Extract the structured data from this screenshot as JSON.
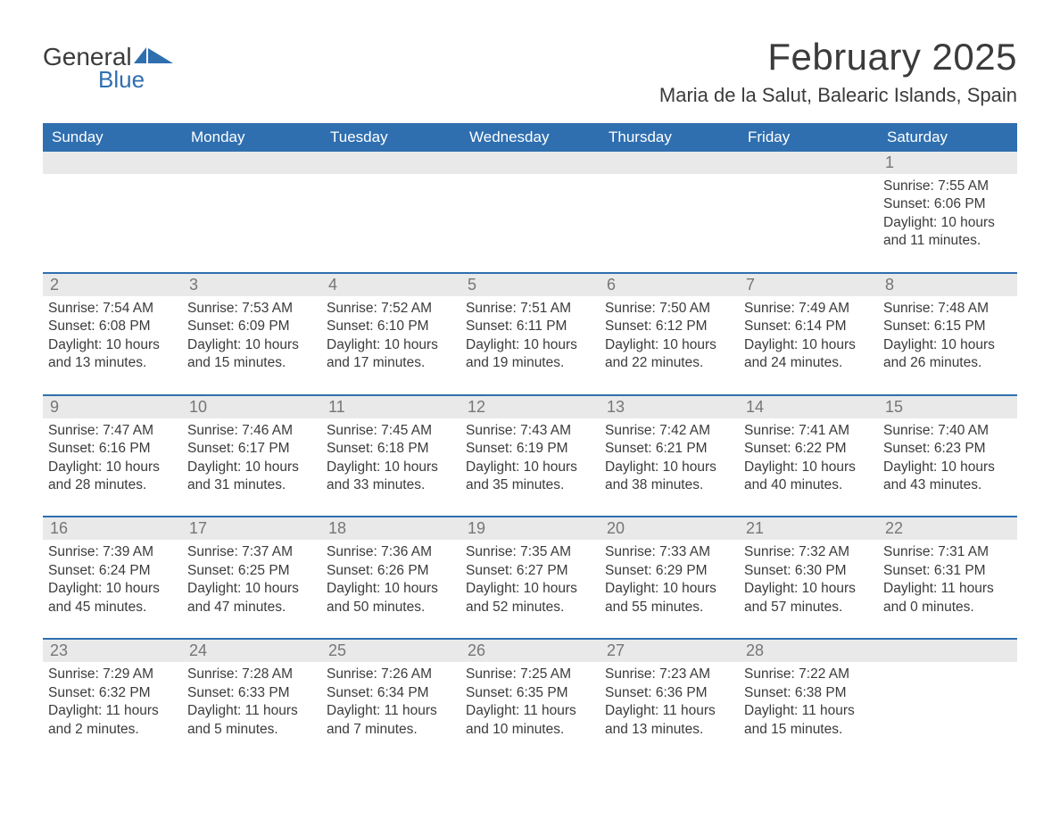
{
  "logo": {
    "text_general": "General",
    "text_blue": "Blue",
    "icon_color": "#2f6fb0"
  },
  "title": "February 2025",
  "location": "Maria de la Salut, Balearic Islands, Spain",
  "colors": {
    "header_bg": "#2f6fb0",
    "header_text": "#ffffff",
    "daynum_bg": "#e9e9e9",
    "daynum_text": "#767676",
    "body_text": "#3b3b3b",
    "rule": "#2f6fb0",
    "page_bg": "#ffffff"
  },
  "weekdays": [
    "Sunday",
    "Monday",
    "Tuesday",
    "Wednesday",
    "Thursday",
    "Friday",
    "Saturday"
  ],
  "weeks": [
    [
      null,
      null,
      null,
      null,
      null,
      null,
      {
        "n": "1",
        "sunrise": "Sunrise: 7:55 AM",
        "sunset": "Sunset: 6:06 PM",
        "daylight": "Daylight: 10 hours and 11 minutes."
      }
    ],
    [
      {
        "n": "2",
        "sunrise": "Sunrise: 7:54 AM",
        "sunset": "Sunset: 6:08 PM",
        "daylight": "Daylight: 10 hours and 13 minutes."
      },
      {
        "n": "3",
        "sunrise": "Sunrise: 7:53 AM",
        "sunset": "Sunset: 6:09 PM",
        "daylight": "Daylight: 10 hours and 15 minutes."
      },
      {
        "n": "4",
        "sunrise": "Sunrise: 7:52 AM",
        "sunset": "Sunset: 6:10 PM",
        "daylight": "Daylight: 10 hours and 17 minutes."
      },
      {
        "n": "5",
        "sunrise": "Sunrise: 7:51 AM",
        "sunset": "Sunset: 6:11 PM",
        "daylight": "Daylight: 10 hours and 19 minutes."
      },
      {
        "n": "6",
        "sunrise": "Sunrise: 7:50 AM",
        "sunset": "Sunset: 6:12 PM",
        "daylight": "Daylight: 10 hours and 22 minutes."
      },
      {
        "n": "7",
        "sunrise": "Sunrise: 7:49 AM",
        "sunset": "Sunset: 6:14 PM",
        "daylight": "Daylight: 10 hours and 24 minutes."
      },
      {
        "n": "8",
        "sunrise": "Sunrise: 7:48 AM",
        "sunset": "Sunset: 6:15 PM",
        "daylight": "Daylight: 10 hours and 26 minutes."
      }
    ],
    [
      {
        "n": "9",
        "sunrise": "Sunrise: 7:47 AM",
        "sunset": "Sunset: 6:16 PM",
        "daylight": "Daylight: 10 hours and 28 minutes."
      },
      {
        "n": "10",
        "sunrise": "Sunrise: 7:46 AM",
        "sunset": "Sunset: 6:17 PM",
        "daylight": "Daylight: 10 hours and 31 minutes."
      },
      {
        "n": "11",
        "sunrise": "Sunrise: 7:45 AM",
        "sunset": "Sunset: 6:18 PM",
        "daylight": "Daylight: 10 hours and 33 minutes."
      },
      {
        "n": "12",
        "sunrise": "Sunrise: 7:43 AM",
        "sunset": "Sunset: 6:19 PM",
        "daylight": "Daylight: 10 hours and 35 minutes."
      },
      {
        "n": "13",
        "sunrise": "Sunrise: 7:42 AM",
        "sunset": "Sunset: 6:21 PM",
        "daylight": "Daylight: 10 hours and 38 minutes."
      },
      {
        "n": "14",
        "sunrise": "Sunrise: 7:41 AM",
        "sunset": "Sunset: 6:22 PM",
        "daylight": "Daylight: 10 hours and 40 minutes."
      },
      {
        "n": "15",
        "sunrise": "Sunrise: 7:40 AM",
        "sunset": "Sunset: 6:23 PM",
        "daylight": "Daylight: 10 hours and 43 minutes."
      }
    ],
    [
      {
        "n": "16",
        "sunrise": "Sunrise: 7:39 AM",
        "sunset": "Sunset: 6:24 PM",
        "daylight": "Daylight: 10 hours and 45 minutes."
      },
      {
        "n": "17",
        "sunrise": "Sunrise: 7:37 AM",
        "sunset": "Sunset: 6:25 PM",
        "daylight": "Daylight: 10 hours and 47 minutes."
      },
      {
        "n": "18",
        "sunrise": "Sunrise: 7:36 AM",
        "sunset": "Sunset: 6:26 PM",
        "daylight": "Daylight: 10 hours and 50 minutes."
      },
      {
        "n": "19",
        "sunrise": "Sunrise: 7:35 AM",
        "sunset": "Sunset: 6:27 PM",
        "daylight": "Daylight: 10 hours and 52 minutes."
      },
      {
        "n": "20",
        "sunrise": "Sunrise: 7:33 AM",
        "sunset": "Sunset: 6:29 PM",
        "daylight": "Daylight: 10 hours and 55 minutes."
      },
      {
        "n": "21",
        "sunrise": "Sunrise: 7:32 AM",
        "sunset": "Sunset: 6:30 PM",
        "daylight": "Daylight: 10 hours and 57 minutes."
      },
      {
        "n": "22",
        "sunrise": "Sunrise: 7:31 AM",
        "sunset": "Sunset: 6:31 PM",
        "daylight": "Daylight: 11 hours and 0 minutes."
      }
    ],
    [
      {
        "n": "23",
        "sunrise": "Sunrise: 7:29 AM",
        "sunset": "Sunset: 6:32 PM",
        "daylight": "Daylight: 11 hours and 2 minutes."
      },
      {
        "n": "24",
        "sunrise": "Sunrise: 7:28 AM",
        "sunset": "Sunset: 6:33 PM",
        "daylight": "Daylight: 11 hours and 5 minutes."
      },
      {
        "n": "25",
        "sunrise": "Sunrise: 7:26 AM",
        "sunset": "Sunset: 6:34 PM",
        "daylight": "Daylight: 11 hours and 7 minutes."
      },
      {
        "n": "26",
        "sunrise": "Sunrise: 7:25 AM",
        "sunset": "Sunset: 6:35 PM",
        "daylight": "Daylight: 11 hours and 10 minutes."
      },
      {
        "n": "27",
        "sunrise": "Sunrise: 7:23 AM",
        "sunset": "Sunset: 6:36 PM",
        "daylight": "Daylight: 11 hours and 13 minutes."
      },
      {
        "n": "28",
        "sunrise": "Sunrise: 7:22 AM",
        "sunset": "Sunset: 6:38 PM",
        "daylight": "Daylight: 11 hours and 15 minutes."
      },
      null
    ]
  ]
}
